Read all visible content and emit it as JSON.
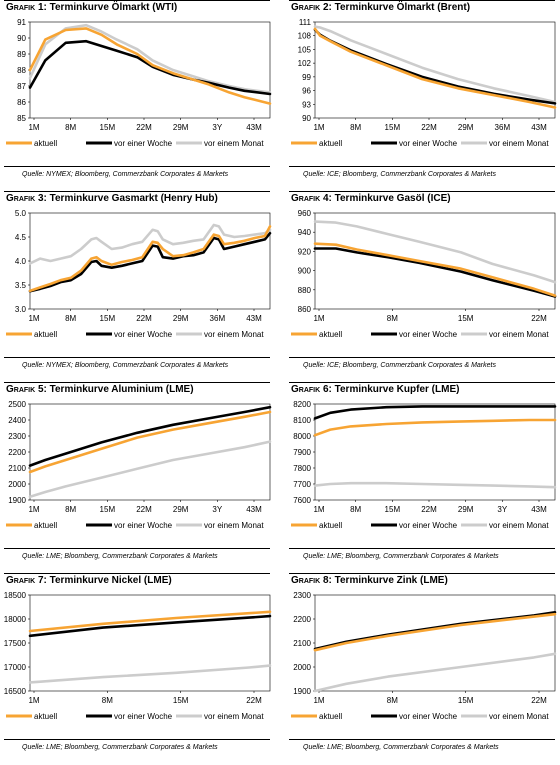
{
  "colors": {
    "aktuell": "#f7a433",
    "woche": "#000000",
    "monat": "#cccccc"
  },
  "legend": {
    "aktuell": "aktuell",
    "woche": "vor einer Woche",
    "monat": "vor einem Monat"
  },
  "charts": [
    {
      "id": "g1",
      "prefix": "Grafik 1:",
      "title": "Terminkurve Ölmarkt (WTI)",
      "source": "Quelle: NYMEX; Bloomberg, Commerzbank Corporates & Markets",
      "yticks": [
        "91",
        "90",
        "89",
        "88",
        "87",
        "86",
        "85"
      ],
      "xticks": [
        "1M",
        "8M",
        "15M",
        "22M",
        "29M",
        "3Y",
        "43M"
      ]
    },
    {
      "id": "g2",
      "prefix": "Grafik 2:",
      "title": "Terminkurve Ölmarkt (Brent)",
      "source": "Quelle: ICE; Bloomberg, Commerzbank Corporates & Markets",
      "yticks": [
        "111",
        "108",
        "105",
        "102",
        "99",
        "96",
        "93",
        "90"
      ],
      "xticks": [
        "1M",
        "8M",
        "15M",
        "22M",
        "29M",
        "36M",
        "43M"
      ]
    },
    {
      "id": "g3",
      "prefix": "Grafik 3:",
      "title": "Terminkurve Gasmarkt (Henry Hub)",
      "source": "Quelle: NYMEX; Bloomberg, Commerzbank Corporates & Markets",
      "yticks": [
        "5.0",
        "4.5",
        "4.0",
        "3.5",
        "3.0"
      ],
      "xticks": [
        "1M",
        "8M",
        "15M",
        "22M",
        "29M",
        "36M",
        "43M"
      ]
    },
    {
      "id": "g4",
      "prefix": "Grafik 4:",
      "title": "Terminkurve Gasöl (ICE)",
      "source": "Quelle: ICE; Bloomberg, Commerzbank Corporates & Markets",
      "yticks": [
        "960",
        "940",
        "920",
        "900",
        "880",
        "860"
      ],
      "xticks": [
        "1M",
        "8M",
        "15M",
        "22M"
      ]
    },
    {
      "id": "g5",
      "prefix": "Grafik 5:",
      "title": "Terminkurve Aluminium (LME)",
      "source": "Quelle: LME; Bloomberg, Commerzbank Corporates & Markets",
      "yticks": [
        "2500",
        "2400",
        "2300",
        "2200",
        "2100",
        "2000",
        "1900"
      ],
      "xticks": [
        "1M",
        "8M",
        "15M",
        "22M",
        "29M",
        "3Y",
        "43M"
      ]
    },
    {
      "id": "g6",
      "prefix": "Grafik 6:",
      "title": "Terminkurve Kupfer (LME)",
      "source": "Quelle: LME; Bloomberg, Commerzbank Corporates & Markets",
      "yticks": [
        "8200",
        "8100",
        "8000",
        "7900",
        "7800",
        "7700",
        "7600"
      ],
      "xticks": [
        "1M",
        "8M",
        "15M",
        "22M",
        "29M",
        "3Y",
        "43M"
      ]
    },
    {
      "id": "g7",
      "prefix": "Grafik 7:",
      "title": "Terminkurve Nickel (LME)",
      "source": "Quelle: LME; Bloomberg, Commerzbank Corporates & Markets",
      "yticks": [
        "18500",
        "18000",
        "17500",
        "17000",
        "16500"
      ],
      "xticks": [
        "1M",
        "8M",
        "15M",
        "22M"
      ]
    },
    {
      "id": "g8",
      "prefix": "Grafik 8:",
      "title": "Terminkurve Zink (LME)",
      "source": "Quelle: LME; Bloomberg, Commerzbank Corporates & Markets",
      "yticks": [
        "2300",
        "2200",
        "2100",
        "2000",
        "1900"
      ],
      "xticks": [
        "1M",
        "8M",
        "15M",
        "22M"
      ]
    }
  ],
  "chart_data": [
    {
      "type": "line",
      "ylim": [
        85,
        91
      ],
      "x": [
        1,
        4,
        8,
        12,
        15,
        18,
        22,
        25,
        29,
        33,
        36,
        40,
        43,
        48
      ],
      "series": [
        {
          "name": "aktuell",
          "values": [
            88.0,
            89.9,
            90.5,
            90.6,
            90.2,
            89.6,
            89.0,
            88.3,
            87.8,
            87.4,
            87.1,
            86.6,
            86.3,
            85.9
          ]
        },
        {
          "name": "vor einer Woche",
          "values": [
            86.9,
            88.6,
            89.7,
            89.8,
            89.5,
            89.2,
            88.8,
            88.2,
            87.7,
            87.4,
            87.2,
            86.9,
            86.7,
            86.5
          ]
        },
        {
          "name": "vor einem Monat",
          "values": [
            87.5,
            89.6,
            90.6,
            90.8,
            90.4,
            89.9,
            89.3,
            88.6,
            88.0,
            87.6,
            87.3,
            87.0,
            86.8,
            86.6
          ]
        }
      ]
    },
    {
      "type": "line",
      "ylim": [
        90,
        111
      ],
      "x": [
        1,
        2,
        4,
        8,
        15,
        22,
        29,
        36,
        43,
        48
      ],
      "series": [
        {
          "name": "aktuell",
          "values": [
            109.5,
            108.0,
            106.8,
            104.5,
            101.5,
            98.5,
            96.5,
            95.0,
            93.5,
            92.3
          ]
        },
        {
          "name": "vor einer Woche",
          "values": [
            109.3,
            108.2,
            106.9,
            104.8,
            101.8,
            99.0,
            96.9,
            95.3,
            94.0,
            93.2
          ]
        },
        {
          "name": "vor einem Monat",
          "values": [
            110.0,
            109.8,
            109.0,
            107.0,
            104.0,
            101.0,
            98.5,
            96.5,
            94.8,
            93.5
          ]
        }
      ]
    },
    {
      "type": "line",
      "ylim": [
        3.0,
        5.0
      ],
      "x": [
        1,
        3,
        5,
        7,
        9,
        11,
        13,
        14,
        15,
        17,
        19,
        21,
        23,
        25,
        26,
        27,
        29,
        31,
        33,
        35,
        37,
        38,
        39,
        41,
        43,
        45,
        47,
        48
      ],
      "series": [
        {
          "name": "aktuell",
          "values": [
            3.38,
            3.45,
            3.52,
            3.6,
            3.65,
            3.8,
            4.05,
            4.08,
            4.0,
            3.92,
            3.98,
            4.02,
            4.08,
            4.4,
            4.38,
            4.25,
            4.1,
            4.12,
            4.18,
            4.25,
            4.55,
            4.52,
            4.35,
            4.38,
            4.42,
            4.48,
            4.52,
            4.72
          ]
        },
        {
          "name": "vor einer Woche",
          "values": [
            3.37,
            3.42,
            3.48,
            3.56,
            3.6,
            3.73,
            3.98,
            4.0,
            3.9,
            3.86,
            3.9,
            3.95,
            4.0,
            4.32,
            4.3,
            4.08,
            4.05,
            4.1,
            4.12,
            4.18,
            4.48,
            4.45,
            4.25,
            4.3,
            4.35,
            4.4,
            4.45,
            4.58
          ]
        },
        {
          "name": "vor einem Monat",
          "values": [
            3.95,
            4.05,
            4.0,
            4.05,
            4.1,
            4.25,
            4.45,
            4.48,
            4.4,
            4.25,
            4.28,
            4.35,
            4.4,
            4.65,
            4.62,
            4.45,
            4.35,
            4.38,
            4.42,
            4.45,
            4.75,
            4.72,
            4.55,
            4.5,
            4.52,
            4.55,
            4.58,
            4.65
          ]
        }
      ]
    },
    {
      "type": "line",
      "ylim": [
        860,
        960
      ],
      "x": [
        1,
        3,
        5,
        8,
        11,
        15,
        18,
        22,
        24
      ],
      "series": [
        {
          "name": "aktuell",
          "values": [
            928,
            927,
            922,
            916,
            910,
            902,
            893,
            881,
            874
          ]
        },
        {
          "name": "vor einer Woche",
          "values": [
            923,
            923,
            919,
            914,
            908,
            899,
            890,
            879,
            873
          ]
        },
        {
          "name": "vor einem Monat",
          "values": [
            951,
            950,
            946,
            938,
            930,
            919,
            907,
            895,
            888
          ]
        }
      ]
    },
    {
      "type": "line",
      "ylim": [
        1900,
        2500
      ],
      "x": [
        1,
        4,
        8,
        15,
        22,
        29,
        36,
        43,
        48
      ],
      "series": [
        {
          "name": "aktuell",
          "values": [
            2075,
            2110,
            2150,
            2220,
            2290,
            2340,
            2380,
            2420,
            2450
          ]
        },
        {
          "name": "vor einer Woche",
          "values": [
            2115,
            2150,
            2190,
            2260,
            2320,
            2370,
            2410,
            2450,
            2480
          ]
        },
        {
          "name": "vor einem Monat",
          "values": [
            1920,
            1950,
            1985,
            2040,
            2095,
            2150,
            2190,
            2230,
            2265
          ]
        }
      ]
    },
    {
      "type": "line",
      "ylim": [
        7600,
        8200
      ],
      "x": [
        1,
        4,
        8,
        15,
        22,
        29,
        36,
        43,
        48
      ],
      "series": [
        {
          "name": "aktuell",
          "values": [
            8005,
            8040,
            8060,
            8075,
            8085,
            8090,
            8095,
            8100,
            8100
          ]
        },
        {
          "name": "vor einer Woche",
          "values": [
            8110,
            8145,
            8165,
            8180,
            8185,
            8185,
            8185,
            8185,
            8185
          ]
        },
        {
          "name": "vor einem Monat",
          "values": [
            7690,
            7700,
            7705,
            7705,
            7700,
            7695,
            7690,
            7685,
            7680
          ]
        }
      ]
    },
    {
      "type": "line",
      "ylim": [
        16500,
        18500
      ],
      "x": [
        1,
        8,
        15,
        22,
        24
      ],
      "series": [
        {
          "name": "aktuell",
          "values": [
            17750,
            17900,
            18020,
            18120,
            18150
          ]
        },
        {
          "name": "vor einer Woche",
          "values": [
            17650,
            17820,
            17930,
            18030,
            18060
          ]
        },
        {
          "name": "vor einem Monat",
          "values": [
            16680,
            16790,
            16880,
            16990,
            17030
          ]
        }
      ]
    },
    {
      "type": "line",
      "ylim": [
        1900,
        2300
      ],
      "x": [
        1,
        4,
        8,
        15,
        22,
        24
      ],
      "series": [
        {
          "name": "aktuell",
          "values": [
            2070,
            2100,
            2130,
            2175,
            2210,
            2220
          ]
        },
        {
          "name": "vor einer Woche",
          "values": [
            2075,
            2105,
            2135,
            2180,
            2215,
            2228
          ]
        },
        {
          "name": "vor einem Monat",
          "values": [
            1900,
            1930,
            1960,
            2000,
            2040,
            2055
          ]
        }
      ]
    }
  ]
}
